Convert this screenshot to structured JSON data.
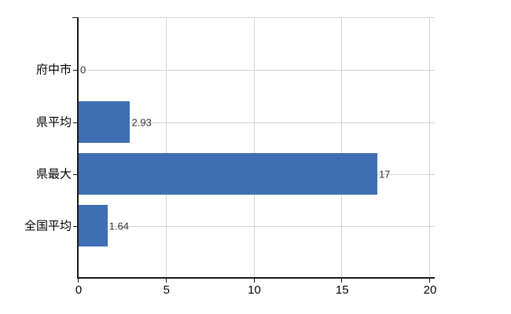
{
  "chart_data": {
    "type": "bar",
    "orientation": "horizontal",
    "title": "",
    "xlabel": "",
    "ylabel": "",
    "categories": [
      "府中市",
      "県平均",
      "県最大",
      "全国平均"
    ],
    "values": [
      0,
      2.93,
      17,
      1.64
    ],
    "value_labels": [
      "0",
      "2.93",
      "17",
      "1.64"
    ],
    "x_ticks": [
      "0",
      "5",
      "10",
      "15",
      "20"
    ],
    "x_tick_values": [
      0,
      5,
      10,
      15,
      20
    ],
    "xlim": [
      0,
      20
    ],
    "grid": true,
    "legend": false,
    "colors": {
      "bar": "#3f6eb2",
      "gridline": "#d6d6d6",
      "axis": "#1a1a1a",
      "category_label": "#000000",
      "value_label": "#333333",
      "tick_label": "#000000",
      "background": "#ffffff"
    }
  }
}
